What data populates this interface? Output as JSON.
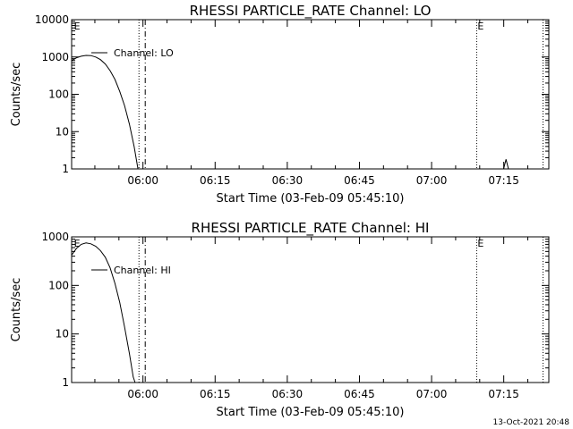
{
  "footer": {
    "timestamp": "13-Oct-2021 20:48"
  },
  "chart_data": [
    {
      "type": "line",
      "title": "RHESSI PARTICLE_RATE Channel: LO",
      "xlabel": "Start Time (03-Feb-09 05:45:10)",
      "ylabel": "Counts/sec",
      "yscale": "log",
      "ylim": [
        1,
        10000
      ],
      "xlim_minutes": [
        0,
        99.2
      ],
      "x_ticks": [
        "06:00",
        "06:15",
        "06:30",
        "06:45",
        "07:00",
        "07:15"
      ],
      "y_ticks": [
        "1",
        "10",
        "100",
        "1000",
        "10000"
      ],
      "legend": "Channel: LO",
      "legend_position": "top-left",
      "markers": [
        {
          "label": "E",
          "minute": 0.3
        },
        {
          "label": "E",
          "minute": 84.2
        }
      ],
      "dotted_lines_minutes": [
        14.0,
        84.2,
        98.0
      ],
      "dashed_lines_minutes": [
        15.3
      ],
      "series": [
        {
          "points": [
            {
              "m": 0.0,
              "v": 800
            },
            {
              "m": 1.0,
              "v": 950
            },
            {
              "m": 2.0,
              "v": 1050
            },
            {
              "m": 3.0,
              "v": 1100
            },
            {
              "m": 4.0,
              "v": 1090
            },
            {
              "m": 5.0,
              "v": 1000
            },
            {
              "m": 6.0,
              "v": 850
            },
            {
              "m": 7.0,
              "v": 650
            },
            {
              "m": 8.0,
              "v": 430
            },
            {
              "m": 9.0,
              "v": 250
            },
            {
              "m": 10.0,
              "v": 120
            },
            {
              "m": 11.0,
              "v": 50
            },
            {
              "m": 12.0,
              "v": 16
            },
            {
              "m": 13.0,
              "v": 4
            },
            {
              "m": 13.8,
              "v": 1
            }
          ]
        },
        {
          "points": [
            {
              "m": 89.8,
              "v": 1
            },
            {
              "m": 90.3,
              "v": 1.8
            },
            {
              "m": 90.8,
              "v": 1
            }
          ]
        }
      ]
    },
    {
      "type": "line",
      "title": "RHESSI PARTICLE_RATE Channel: HI",
      "xlabel": "Start Time (03-Feb-09 05:45:10)",
      "ylabel": "Counts/sec",
      "yscale": "log",
      "ylim": [
        1,
        1000
      ],
      "xlim_minutes": [
        0,
        99.2
      ],
      "x_ticks": [
        "06:00",
        "06:15",
        "06:30",
        "06:45",
        "07:00",
        "07:15"
      ],
      "y_ticks": [
        "1",
        "10",
        "100",
        "1000"
      ],
      "legend": "Channel: HI",
      "legend_position": "top-left",
      "markers": [
        {
          "label": "E",
          "minute": 0.3
        },
        {
          "label": "E",
          "minute": 84.2
        }
      ],
      "dotted_lines_minutes": [
        14.0,
        84.2,
        98.0
      ],
      "dashed_lines_minutes": [
        15.3
      ],
      "series": [
        {
          "points": [
            {
              "m": 0.0,
              "v": 420
            },
            {
              "m": 1.0,
              "v": 580
            },
            {
              "m": 2.0,
              "v": 700
            },
            {
              "m": 3.0,
              "v": 750
            },
            {
              "m": 4.0,
              "v": 720
            },
            {
              "m": 5.0,
              "v": 640
            },
            {
              "m": 6.0,
              "v": 520
            },
            {
              "m": 7.0,
              "v": 380
            },
            {
              "m": 8.0,
              "v": 230
            },
            {
              "m": 9.0,
              "v": 110
            },
            {
              "m": 10.0,
              "v": 45
            },
            {
              "m": 11.0,
              "v": 14
            },
            {
              "m": 12.0,
              "v": 4
            },
            {
              "m": 12.8,
              "v": 1.3
            },
            {
              "m": 13.2,
              "v": 1
            }
          ]
        }
      ]
    }
  ]
}
